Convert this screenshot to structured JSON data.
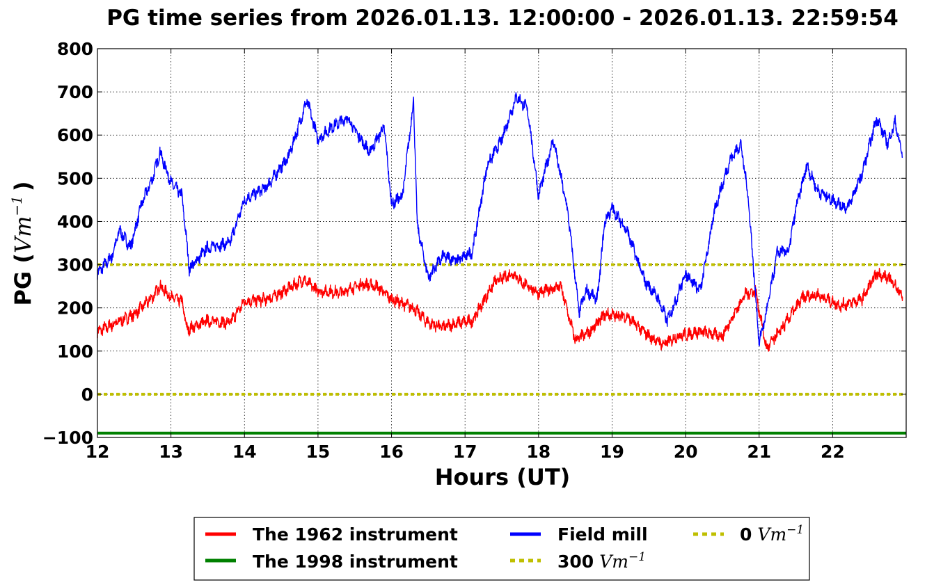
{
  "chart_data": {
    "type": "line",
    "title": "PG time series from 2026.01.13. 12:00:00 - 2026.01.13. 22:59:54",
    "xlabel": "Hours (UT)",
    "ylabel_prefix": "PG (",
    "ylabel_unit": "Vm",
    "ylabel_exp": "−1",
    "ylabel_suffix": ")",
    "xlim": [
      12,
      23
    ],
    "ylim": [
      -100,
      800
    ],
    "xticks": [
      "12",
      "13",
      "14",
      "15",
      "16",
      "17",
      "18",
      "19",
      "20",
      "21",
      "22"
    ],
    "yticks": [
      "800",
      "700",
      "600",
      "500",
      "400",
      "300",
      "200",
      "100",
      "0",
      "−100"
    ],
    "grid": true,
    "legend_placement": "bottom-center",
    "series": [
      {
        "name": "The 1962 instrument",
        "color": "#ff0000",
        "x": [
          12.0,
          12.25,
          12.5,
          12.75,
          12.85,
          13.0,
          13.15,
          13.22,
          13.5,
          13.8,
          14.0,
          14.3,
          14.5,
          14.8,
          15.0,
          15.3,
          15.6,
          15.8,
          16.0,
          16.3,
          16.5,
          16.7,
          16.9,
          17.1,
          17.4,
          17.65,
          17.8,
          18.0,
          18.3,
          18.5,
          18.7,
          18.9,
          19.2,
          19.5,
          19.7,
          19.9,
          20.2,
          20.5,
          20.8,
          20.95,
          21.1,
          21.3,
          21.6,
          21.8,
          22.1,
          22.4,
          22.6,
          22.8,
          22.95
        ],
        "y": [
          145,
          165,
          185,
          225,
          250,
          225,
          215,
          150,
          170,
          165,
          215,
          220,
          235,
          265,
          240,
          235,
          255,
          250,
          220,
          200,
          165,
          155,
          165,
          170,
          260,
          280,
          255,
          235,
          250,
          125,
          145,
          185,
          180,
          135,
          115,
          135,
          145,
          135,
          230,
          240,
          105,
          150,
          225,
          230,
          205,
          220,
          280,
          265,
          225
        ]
      },
      {
        "name": "Field mill",
        "color": "#0000ff",
        "x": [
          12.0,
          12.1,
          12.2,
          12.3,
          12.45,
          12.6,
          12.75,
          12.85,
          13.0,
          13.15,
          13.25,
          13.5,
          13.8,
          14.0,
          14.3,
          14.6,
          14.85,
          15.0,
          15.2,
          15.4,
          15.7,
          15.9,
          16.0,
          16.15,
          16.3,
          16.35,
          16.5,
          16.7,
          16.9,
          17.1,
          17.3,
          17.5,
          17.7,
          17.85,
          18.0,
          18.2,
          18.4,
          18.55,
          18.65,
          18.8,
          18.9,
          19.0,
          19.2,
          19.45,
          19.6,
          19.75,
          19.85,
          20.0,
          20.2,
          20.4,
          20.6,
          20.75,
          20.85,
          21.0,
          21.1,
          21.25,
          21.4,
          21.5,
          21.65,
          21.8,
          22.0,
          22.2,
          22.4,
          22.6,
          22.75,
          22.85,
          22.95
        ],
        "y": [
          280,
          300,
          320,
          380,
          340,
          440,
          500,
          560,
          490,
          460,
          290,
          340,
          350,
          450,
          480,
          550,
          680,
          590,
          620,
          640,
          560,
          620,
          440,
          460,
          680,
          390,
          270,
          320,
          310,
          330,
          530,
          590,
          690,
          660,
          460,
          590,
          420,
          190,
          240,
          220,
          400,
          430,
          380,
          260,
          230,
          170,
          210,
          280,
          240,
          430,
          540,
          580,
          460,
          120,
          190,
          330,
          330,
          430,
          530,
          470,
          450,
          430,
          510,
          640,
          580,
          630,
          550
        ]
      },
      {
        "name": "The 1998 instrument",
        "color": "#008000",
        "x": [
          12.0,
          23.0
        ],
        "y": [
          -90,
          -90
        ]
      },
      {
        "name": "300 Vm⁻¹",
        "color": "#bfbf00",
        "x": [
          12.0,
          23.0
        ],
        "y": [
          300,
          300
        ]
      },
      {
        "name": "0 Vm⁻¹",
        "color": "#bfbf00",
        "x": [
          12.0,
          23.0
        ],
        "y": [
          0,
          0
        ]
      }
    ],
    "legend": {
      "col1": [
        "The 1962 instrument",
        "The 1998 instrument"
      ],
      "col2_row1": "Field mill",
      "col2_row2_num": "300",
      "col3_row1_num": "0",
      "unit": "Vm",
      "unit_exp": "−1"
    }
  }
}
